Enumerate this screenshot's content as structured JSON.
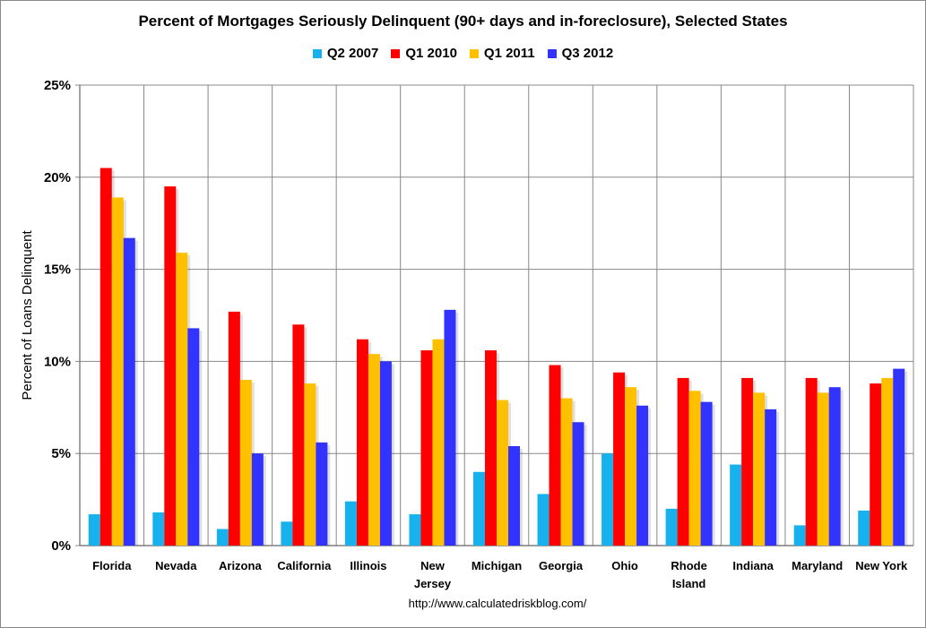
{
  "chart_data": {
    "type": "bar",
    "title": "Percent of Mortgages Seriously Delinquent (90+ days and in-foreclosure), Selected States",
    "ylabel": "Percent of Loans Delinquent",
    "xlabel": "",
    "ylim": [
      0,
      25
    ],
    "yticks": [
      "0%",
      "5%",
      "10%",
      "15%",
      "20%",
      "25%"
    ],
    "grid": true,
    "legend": "top",
    "categories": [
      "Florida",
      "Nevada",
      "Arizona",
      "California",
      "Illinois",
      "New Jersey",
      "Michigan",
      "Georgia",
      "Ohio",
      "Rhode Island",
      "Indiana",
      "Maryland",
      "New York"
    ],
    "series": [
      {
        "name": "Q2 2007",
        "color": "#17B2EE",
        "values": [
          1.7,
          1.8,
          0.9,
          1.3,
          2.4,
          1.7,
          4.0,
          2.8,
          5.0,
          2.0,
          4.4,
          1.1,
          1.9
        ]
      },
      {
        "name": "Q1 2010",
        "color": "#FF0000",
        "values": [
          20.5,
          19.5,
          12.7,
          12.0,
          11.2,
          10.6,
          10.6,
          9.8,
          9.4,
          9.1,
          9.1,
          9.1,
          8.8
        ]
      },
      {
        "name": "Q1 2011",
        "color": "#FFC000",
        "values": [
          18.9,
          15.9,
          9.0,
          8.8,
          10.4,
          11.2,
          7.9,
          8.0,
          8.6,
          8.4,
          8.3,
          8.3,
          9.1
        ]
      },
      {
        "name": "Q3 2012",
        "color": "#3333FF",
        "values": [
          16.7,
          11.8,
          5.0,
          5.6,
          10.0,
          12.8,
          5.4,
          6.7,
          7.6,
          7.8,
          7.4,
          8.6,
          9.6
        ]
      }
    ]
  },
  "source": "http://www.calculatedriskblog.com/"
}
